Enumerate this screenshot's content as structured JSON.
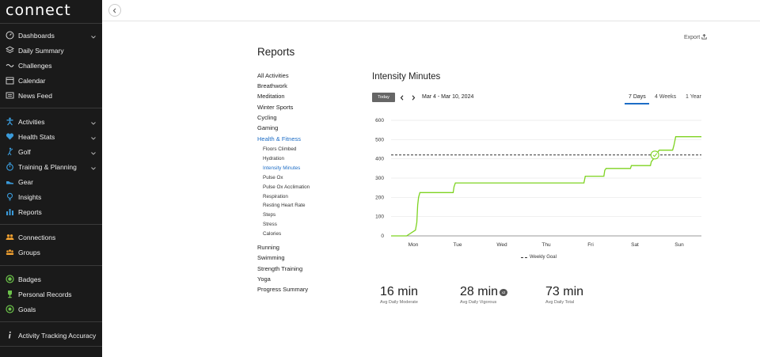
{
  "app": {
    "logo": "connect"
  },
  "sidebar": {
    "group1": [
      {
        "label": "Dashboards",
        "icon": "gauge-icon",
        "chevron": true
      },
      {
        "label": "Daily Summary",
        "icon": "layers-icon",
        "chevron": false
      },
      {
        "label": "Challenges",
        "icon": "challenges-icon",
        "chevron": false
      },
      {
        "label": "Calendar",
        "icon": "calendar-icon",
        "chevron": false
      },
      {
        "label": "News Feed",
        "icon": "newsfeed-icon",
        "chevron": false
      }
    ],
    "group2": [
      {
        "label": "Activities",
        "icon": "running-figure-icon",
        "chevron": true
      },
      {
        "label": "Health Stats",
        "icon": "heart-icon",
        "chevron": true
      },
      {
        "label": "Golf",
        "icon": "golfer-icon",
        "chevron": true
      },
      {
        "label": "Training & Planning",
        "icon": "stopwatch-icon",
        "chevron": true
      },
      {
        "label": "Gear",
        "icon": "shoe-icon",
        "chevron": false
      },
      {
        "label": "Insights",
        "icon": "lightbulb-icon",
        "chevron": false
      },
      {
        "label": "Reports",
        "icon": "bar-chart-icon",
        "chevron": false
      }
    ],
    "group3": [
      {
        "label": "Connections",
        "icon": "connections-icon",
        "chevron": false
      },
      {
        "label": "Groups",
        "icon": "groups-icon",
        "chevron": false
      }
    ],
    "group4": [
      {
        "label": "Badges",
        "icon": "badge-icon",
        "chevron": false
      },
      {
        "label": "Personal Records",
        "icon": "trophy-icon",
        "chevron": false
      },
      {
        "label": "Goals",
        "icon": "target-icon",
        "chevron": false
      }
    ],
    "group5": [
      {
        "label": "Activity Tracking Accuracy",
        "icon": "info-icon",
        "chevron": false
      }
    ]
  },
  "header": {
    "export_label": "Export"
  },
  "page": {
    "title": "Reports"
  },
  "reports_menu": {
    "top": [
      "All Activities",
      "Breathwork",
      "Meditation",
      "Winter Sports",
      "Cycling",
      "Gaming",
      "Health & Fitness"
    ],
    "sub": [
      "Floors Climbed",
      "Hydration",
      "Intensity Minutes",
      "Pulse Ox",
      "Pulse Ox Acclimation",
      "Respiration",
      "Resting Heart Rate",
      "Steps",
      "Stress",
      "Calories"
    ],
    "bottom": [
      "Running",
      "Swimming",
      "Strength Training",
      "Yoga",
      "Progress Summary"
    ],
    "active_top": "Health & Fitness",
    "active_sub": "Intensity Minutes"
  },
  "report": {
    "title": "Intensity Minutes",
    "today_label": "Today",
    "date_range": "Mar 4 - Mar 10, 2024",
    "range_tabs": [
      "7 Days",
      "4 Weeks",
      "1 Year"
    ],
    "active_range": "7 Days",
    "legend_goal": "Weekly Goal"
  },
  "stats": [
    {
      "value": "16 min",
      "label": "Avg Daily Moderate",
      "badge": ""
    },
    {
      "value": "28 min",
      "label": "Avg Daily Vigorous",
      "badge": "x2"
    },
    {
      "value": "73 min",
      "label": "Avg Daily Total",
      "badge": ""
    }
  ],
  "colors": {
    "sidebar_bg": "#1a1a1a",
    "accent": "#1d6dc6",
    "line": "#7ed321",
    "goal_line": "#333333"
  },
  "chart_data": {
    "type": "line",
    "title": "Intensity Minutes",
    "categories": [
      "Mon",
      "Tue",
      "Wed",
      "Thu",
      "Fri",
      "Sat",
      "Sun"
    ],
    "yticks": [
      0,
      100,
      200,
      300,
      400,
      500,
      600
    ],
    "ylim": [
      0,
      600
    ],
    "weekly_goal": 420,
    "goal_reached_at": 5.45,
    "series": [
      {
        "x": [
          -0.5,
          -0.15,
          0.05,
          0.08,
          0.1,
          0.12,
          0.15,
          0.9,
          0.92,
          0.95,
          2.0,
          3.0,
          3.85,
          3.88,
          4.3,
          4.32,
          4.35,
          4.4,
          4.9,
          4.92,
          5.35,
          5.37,
          5.42,
          5.45,
          5.5,
          5.53,
          5.55,
          5.85,
          5.88,
          5.92,
          6.5
        ],
        "y": [
          0,
          0,
          30,
          70,
          160,
          200,
          225,
          225,
          255,
          275,
          275,
          275,
          275,
          310,
          310,
          340,
          350,
          350,
          350,
          365,
          365,
          385,
          400,
          420,
          425,
          440,
          445,
          445,
          470,
          515,
          515
        ]
      }
    ]
  }
}
